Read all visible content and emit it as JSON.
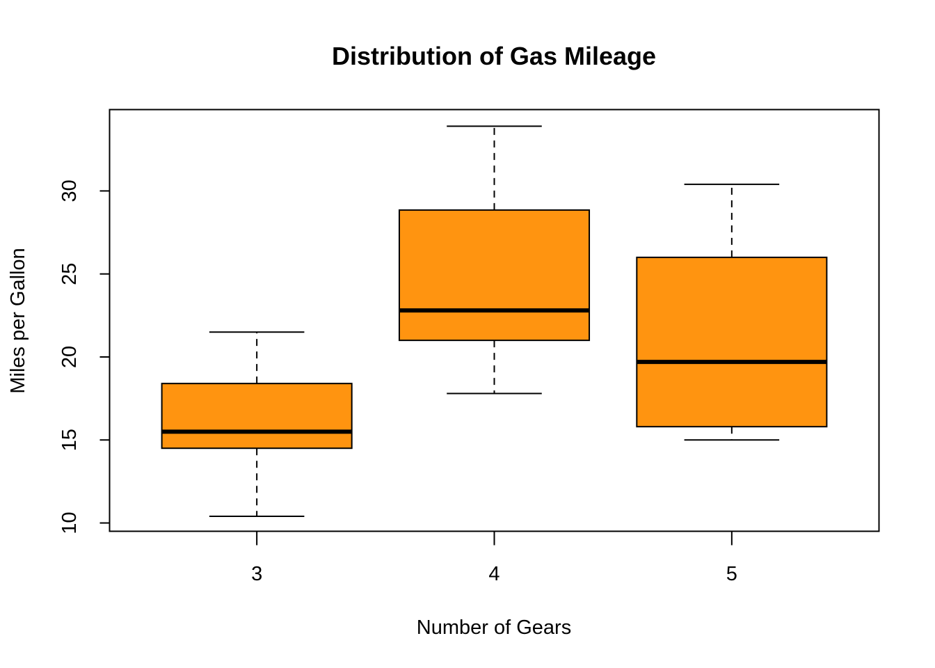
{
  "chart_data": {
    "type": "boxplot",
    "title": "Distribution of Gas Mileage",
    "xlabel": "Number of Gears",
    "ylabel": "Miles per Gallon",
    "categories": [
      "3",
      "4",
      "5"
    ],
    "boxes": [
      {
        "category": "3",
        "whisker_low": 10.4,
        "q1": 14.5,
        "median": 15.5,
        "q3": 18.4,
        "whisker_high": 21.5
      },
      {
        "category": "4",
        "whisker_low": 17.8,
        "q1": 21.0,
        "median": 22.8,
        "q3": 28.85,
        "whisker_high": 33.9
      },
      {
        "category": "5",
        "whisker_low": 15.0,
        "q1": 15.8,
        "median": 19.7,
        "q3": 26.0,
        "whisker_high": 30.4
      }
    ],
    "y_ticks": [
      10,
      15,
      20,
      25,
      30
    ],
    "ylim": [
      9.5,
      34.9
    ],
    "box_color": "#FF9410",
    "grid": false,
    "legend": "none"
  }
}
